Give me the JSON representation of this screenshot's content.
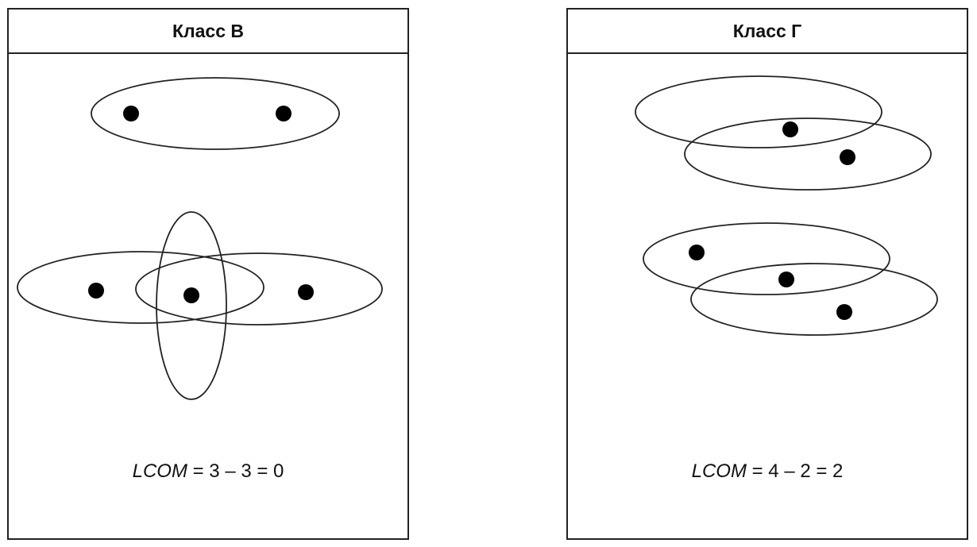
{
  "panels": [
    {
      "title": "Класс В",
      "formula": {
        "metric": "LCOM",
        "expression": " = 3 – 3 = 0"
      }
    },
    {
      "title": "Класс Г",
      "formula": {
        "metric": "LCOM",
        "expression": " = 4 – 2 = 2"
      }
    }
  ],
  "colors": {
    "stroke": "#222222",
    "dot": "#000000",
    "text": "#111111"
  }
}
